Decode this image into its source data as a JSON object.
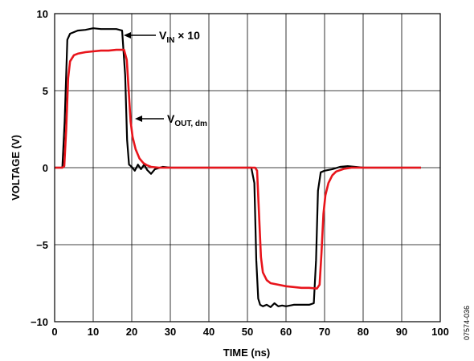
{
  "chart_data": {
    "type": "line",
    "xlabel": "TIME (ns)",
    "ylabel": "VOLTAGE (V)",
    "xlim": [
      0,
      100
    ],
    "ylim": [
      -10,
      10
    ],
    "x_ticks": [
      0,
      10,
      20,
      30,
      40,
      50,
      60,
      70,
      80,
      90,
      100
    ],
    "y_ticks": [
      -10,
      -5,
      0,
      5,
      10
    ],
    "y_tick_labels": [
      "−10",
      "−5",
      "0",
      "5",
      "10"
    ],
    "grid": true,
    "series": [
      {
        "name_main": "V",
        "name_sub": "IN",
        "name_suffix": " × 10",
        "color": "#000000",
        "x": [
          0,
          2,
          2.6,
          3.3,
          4,
          6,
          8,
          10,
          12,
          14,
          16,
          17.5,
          18.3,
          18.8,
          19.3,
          20,
          20.8,
          21.6,
          22.4,
          23.2,
          24,
          25,
          26,
          28,
          30,
          35,
          40,
          45,
          50,
          51,
          51.8,
          52.3,
          52.8,
          53.3,
          54,
          55,
          56,
          57,
          58,
          59,
          60,
          62,
          64,
          66,
          67.2,
          67.8,
          68.3,
          69,
          70,
          72,
          74,
          76,
          80,
          85,
          90,
          95
        ],
        "y": [
          0,
          0,
          3,
          8.3,
          8.7,
          8.9,
          8.95,
          9.05,
          9.0,
          9.0,
          9.0,
          8.9,
          6,
          1.8,
          0.2,
          0.05,
          -0.2,
          0.2,
          -0.1,
          0.2,
          -0.15,
          -0.4,
          -0.1,
          0.05,
          0,
          0,
          0,
          0,
          0,
          0,
          -1,
          -6,
          -8.5,
          -8.9,
          -9.0,
          -8.9,
          -9.05,
          -8.8,
          -9.0,
          -8.95,
          -9.0,
          -8.9,
          -8.9,
          -8.9,
          -8.8,
          -6,
          -1.5,
          -0.3,
          -0.2,
          -0.1,
          0.05,
          0.1,
          0,
          0,
          0,
          0
        ],
        "note": "Trace drawn from x = 0 ns to about 95 ns."
      },
      {
        "name_main": "V",
        "name_sub": "OUT, dm",
        "name_suffix": "",
        "color": "#e8141b",
        "x": [
          0,
          2,
          2.5,
          3,
          3.5,
          4,
          5,
          6,
          8,
          10,
          12,
          14,
          16,
          18,
          18.7,
          19.2,
          19.7,
          20.2,
          21,
          22,
          23,
          24,
          25,
          27,
          30,
          35,
          40,
          45,
          50,
          52,
          52.5,
          53,
          53.5,
          54,
          55,
          56,
          58,
          60,
          62,
          64,
          66,
          68,
          68.7,
          69.2,
          69.7,
          70.2,
          71,
          72,
          73,
          75,
          77,
          80,
          85,
          90,
          95
        ],
        "y": [
          0,
          0,
          0.1,
          2.5,
          5.8,
          6.9,
          7.3,
          7.4,
          7.5,
          7.55,
          7.6,
          7.6,
          7.65,
          7.65,
          7.0,
          5.0,
          3.0,
          2.0,
          1.2,
          0.6,
          0.3,
          0.15,
          0.05,
          0,
          0,
          0,
          0,
          0,
          0,
          0,
          -0.2,
          -3,
          -5.8,
          -6.8,
          -7.3,
          -7.5,
          -7.6,
          -7.7,
          -7.75,
          -7.8,
          -7.8,
          -7.85,
          -7.6,
          -5.5,
          -3.0,
          -1.8,
          -1.0,
          -0.5,
          -0.25,
          -0.08,
          0,
          0,
          0,
          0,
          0
        ]
      }
    ],
    "figure_id": "07574-036"
  }
}
